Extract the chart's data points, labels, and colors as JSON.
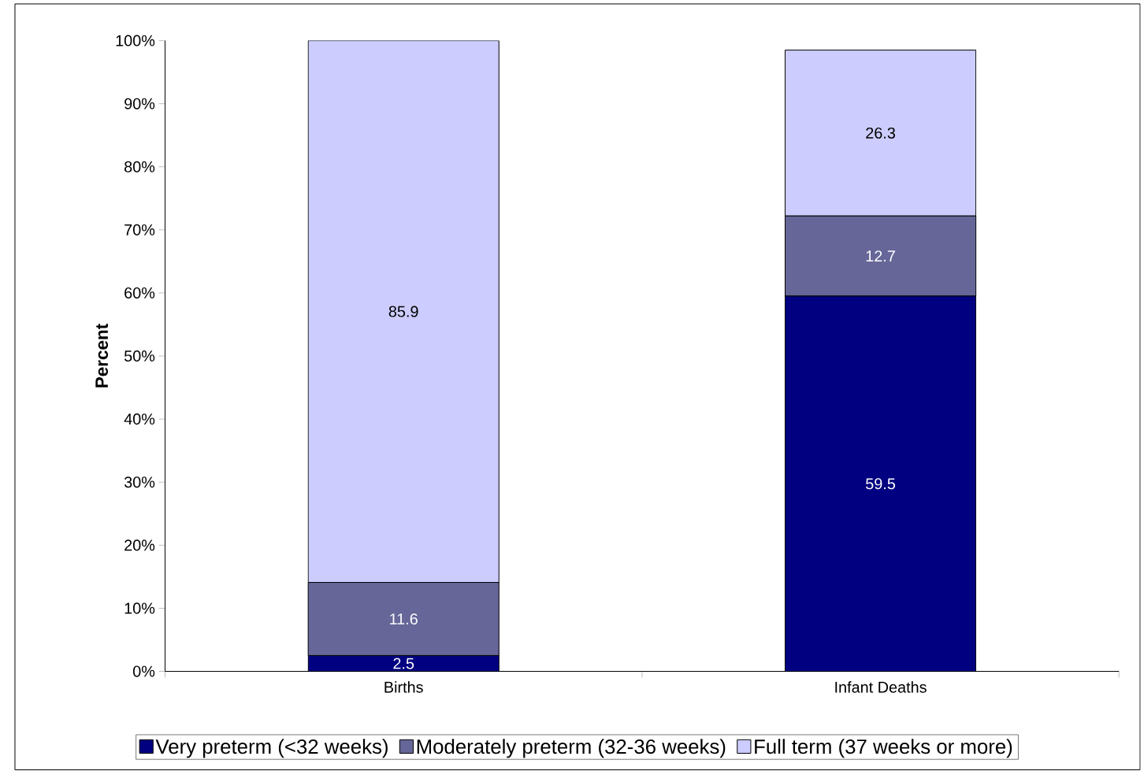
{
  "chart_data": {
    "type": "bar",
    "stacked": true,
    "ylabel": "Percent",
    "categories": [
      "Births",
      "Infant Deaths"
    ],
    "series": [
      {
        "name": "Very preterm (<32 weeks)",
        "color": "#000080",
        "values": [
          2.5,
          59.5
        ]
      },
      {
        "name": "Moderately preterm (32-36 weeks)",
        "color": "#666699",
        "values": [
          11.6,
          12.7
        ]
      },
      {
        "name": "Full term (37 weeks or more)",
        "color": "#ccccff",
        "values": [
          85.9,
          26.3
        ]
      }
    ],
    "ylim": [
      0,
      100
    ],
    "yticks": [
      {
        "value": 0,
        "label": "0%"
      },
      {
        "value": 10,
        "label": "10%"
      },
      {
        "value": 20,
        "label": "20%"
      },
      {
        "value": 30,
        "label": "30%"
      },
      {
        "value": 40,
        "label": "40%"
      },
      {
        "value": 50,
        "label": "50%"
      },
      {
        "value": 60,
        "label": "60%"
      },
      {
        "value": 70,
        "label": "70%"
      },
      {
        "value": 80,
        "label": "80%"
      },
      {
        "value": 90,
        "label": "90%"
      },
      {
        "value": 100,
        "label": "100%"
      }
    ],
    "data_labels": true,
    "grid": false,
    "legend": "bottom"
  }
}
